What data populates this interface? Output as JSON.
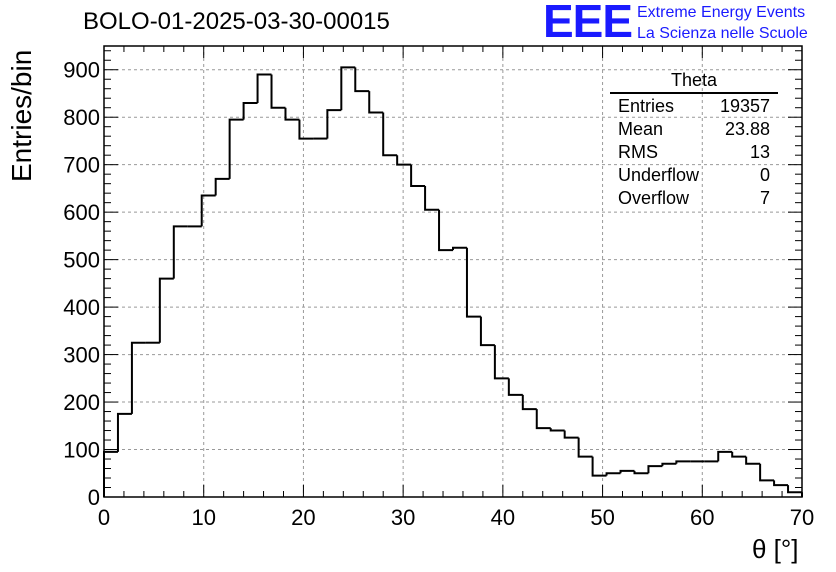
{
  "header": {
    "title": "BOLO-01-2025-03-30-00015",
    "logo_text": "EEE",
    "logo_line1": "Extreme Energy Events",
    "logo_line2": "La Scienza nelle Scuole"
  },
  "stats_box": {
    "title": "Theta",
    "rows": [
      {
        "label": "Entries",
        "value": "19357"
      },
      {
        "label": "Mean",
        "value": "23.88"
      },
      {
        "label": "RMS",
        "value": "13"
      },
      {
        "label": "Underflow",
        "value": "0"
      },
      {
        "label": "Overflow",
        "value": "7"
      }
    ]
  },
  "chart_data": {
    "type": "bar",
    "title": "BOLO-01-2025-03-30-00015",
    "xlabel": "θ [°]",
    "ylabel": "Entries/bin",
    "xlim": [
      0,
      70
    ],
    "ylim": [
      0,
      950
    ],
    "grid": true,
    "legend": "none",
    "bin_width": 1.4,
    "bin_edges_start": 0,
    "xticks": [
      0,
      10,
      20,
      30,
      40,
      50,
      60,
      70
    ],
    "yticks": [
      0,
      100,
      200,
      300,
      400,
      500,
      600,
      700,
      800,
      900
    ],
    "line_color": "#000000",
    "values": [
      95,
      175,
      325,
      325,
      460,
      570,
      570,
      635,
      670,
      795,
      830,
      890,
      820,
      795,
      755,
      755,
      815,
      905,
      855,
      810,
      720,
      700,
      655,
      605,
      520,
      525,
      380,
      320,
      250,
      215,
      185,
      145,
      140,
      125,
      85,
      45,
      50,
      55,
      50,
      65,
      70,
      75,
      75,
      75,
      95,
      85,
      70,
      35,
      25,
      10
    ]
  }
}
